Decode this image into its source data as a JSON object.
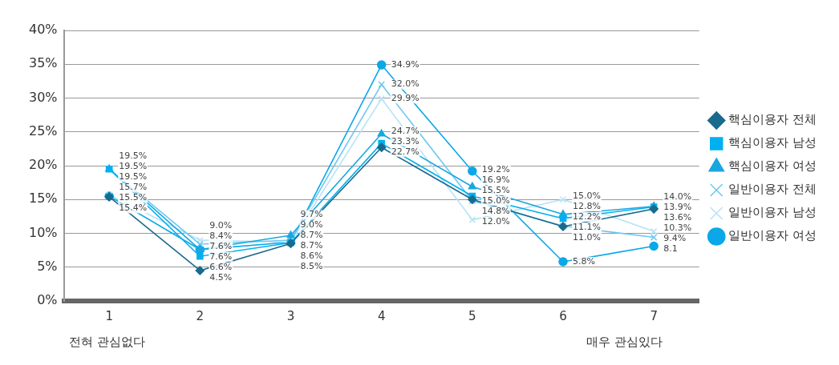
{
  "chart_data": {
    "type": "line",
    "categories": [
      "1",
      "2",
      "3",
      "4",
      "5",
      "6",
      "7"
    ],
    "ylim": [
      0,
      40
    ],
    "yticks": [
      {
        "value": 0,
        "label": "0%"
      },
      {
        "value": 5,
        "label": "5%"
      },
      {
        "value": 10,
        "label": "10%"
      },
      {
        "value": 15,
        "label": "15%"
      },
      {
        "value": 20,
        "label": "20%"
      },
      {
        "value": 25,
        "label": "25%"
      },
      {
        "value": 30,
        "label": "30%"
      },
      {
        "value": 35,
        "label": "35%"
      },
      {
        "value": 40,
        "label": "40%"
      }
    ],
    "grid": "y",
    "legend": "right",
    "line_style": "solid",
    "annotations": [
      "전혀 관심없다",
      "매우 관심있다"
    ],
    "series": [
      {
        "name": "핵심이용자 전체",
        "color": "#1a6a8e",
        "marker": "diamond",
        "values": [
          15.4,
          4.5,
          8.5,
          22.7,
          15.0,
          11.0,
          13.6
        ],
        "value_labels": [
          "15.4%",
          "4.5%",
          "8.5%",
          "22.7%",
          "15.0%",
          "11.0%",
          "13.6%"
        ]
      },
      {
        "name": "핵심이용자 남성",
        "color": "#00b0f0",
        "marker": "square",
        "values": [
          19.5,
          6.6,
          8.6,
          23.3,
          15.5,
          12.2,
          13.9
        ],
        "value_labels": [
          "19.5%",
          "6.6%",
          "8.6%",
          "23.3%",
          "15.5%",
          "12.2%",
          "13.9%"
        ]
      },
      {
        "name": "핵심이용자 여성",
        "color": "#1aa7e0",
        "marker": "triangle",
        "values": [
          19.5,
          7.6,
          9.7,
          24.7,
          16.9,
          12.8,
          14.0
        ],
        "value_labels": [
          "19.5%",
          "7.6%",
          "9.7%",
          "24.7%",
          "16.9%",
          "12.8%",
          "14.0%"
        ]
      },
      {
        "name": "일반이용자 전체",
        "color": "#6cc8ef",
        "marker": "cross",
        "values": [
          19.5,
          8.4,
          9.0,
          32.0,
          14.8,
          11.1,
          9.4
        ],
        "value_labels": [
          "19.5%",
          "8.4%",
          "9.0%",
          "32.0%",
          "14.8%",
          "11.1%",
          "9.4%"
        ]
      },
      {
        "name": "일반이용자 남성",
        "color": "#b5e3f7",
        "marker": "cross",
        "values": [
          15.7,
          9.0,
          8.7,
          29.9,
          12.0,
          15.0,
          10.3
        ],
        "value_labels": [
          "15.7%",
          "9.0%",
          "8.7%",
          "29.9%",
          "12.0%",
          "15.0%",
          "10.3%"
        ]
      },
      {
        "name": "일반이용자 여성",
        "color": "#0aa8e8",
        "marker": "circle",
        "values": [
          15.5,
          7.6,
          8.7,
          34.9,
          19.2,
          5.8,
          8.1
        ],
        "value_labels": [
          "15.5%",
          "7.6%",
          "8.7%",
          "34.9%",
          "19.2%",
          "5.8%",
          "8.1"
        ]
      }
    ]
  }
}
